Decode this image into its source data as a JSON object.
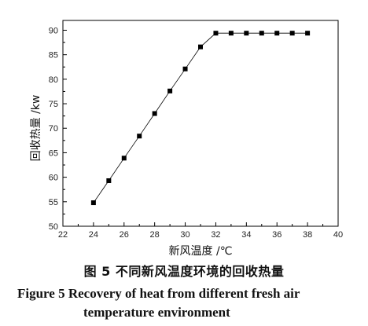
{
  "chart_data": {
    "type": "line",
    "xlabel": "新风温度 /℃",
    "ylabel": "回收热量 /kw",
    "xlim": [
      22,
      40
    ],
    "ylim": [
      50,
      92
    ],
    "xticks": [
      22,
      24,
      26,
      28,
      30,
      32,
      34,
      36,
      38,
      40
    ],
    "yticks": [
      50,
      55,
      60,
      65,
      70,
      75,
      80,
      85,
      90
    ],
    "grid": false,
    "series": [
      {
        "marker": "square",
        "x": [
          24,
          25,
          26,
          27,
          28,
          29,
          30,
          31,
          32,
          33,
          34,
          35,
          36,
          37,
          38
        ],
        "y": [
          54.8,
          59.3,
          63.9,
          68.4,
          73.0,
          77.6,
          82.1,
          86.6,
          89.4,
          89.4,
          89.4,
          89.4,
          89.4,
          89.4,
          89.4
        ]
      }
    ]
  },
  "caption": {
    "cn": "图 5  不同新风温度环境的回收热量",
    "en_line1": "Figure 5  Recovery of heat from different fresh air",
    "en_line2": "temperature environment"
  }
}
